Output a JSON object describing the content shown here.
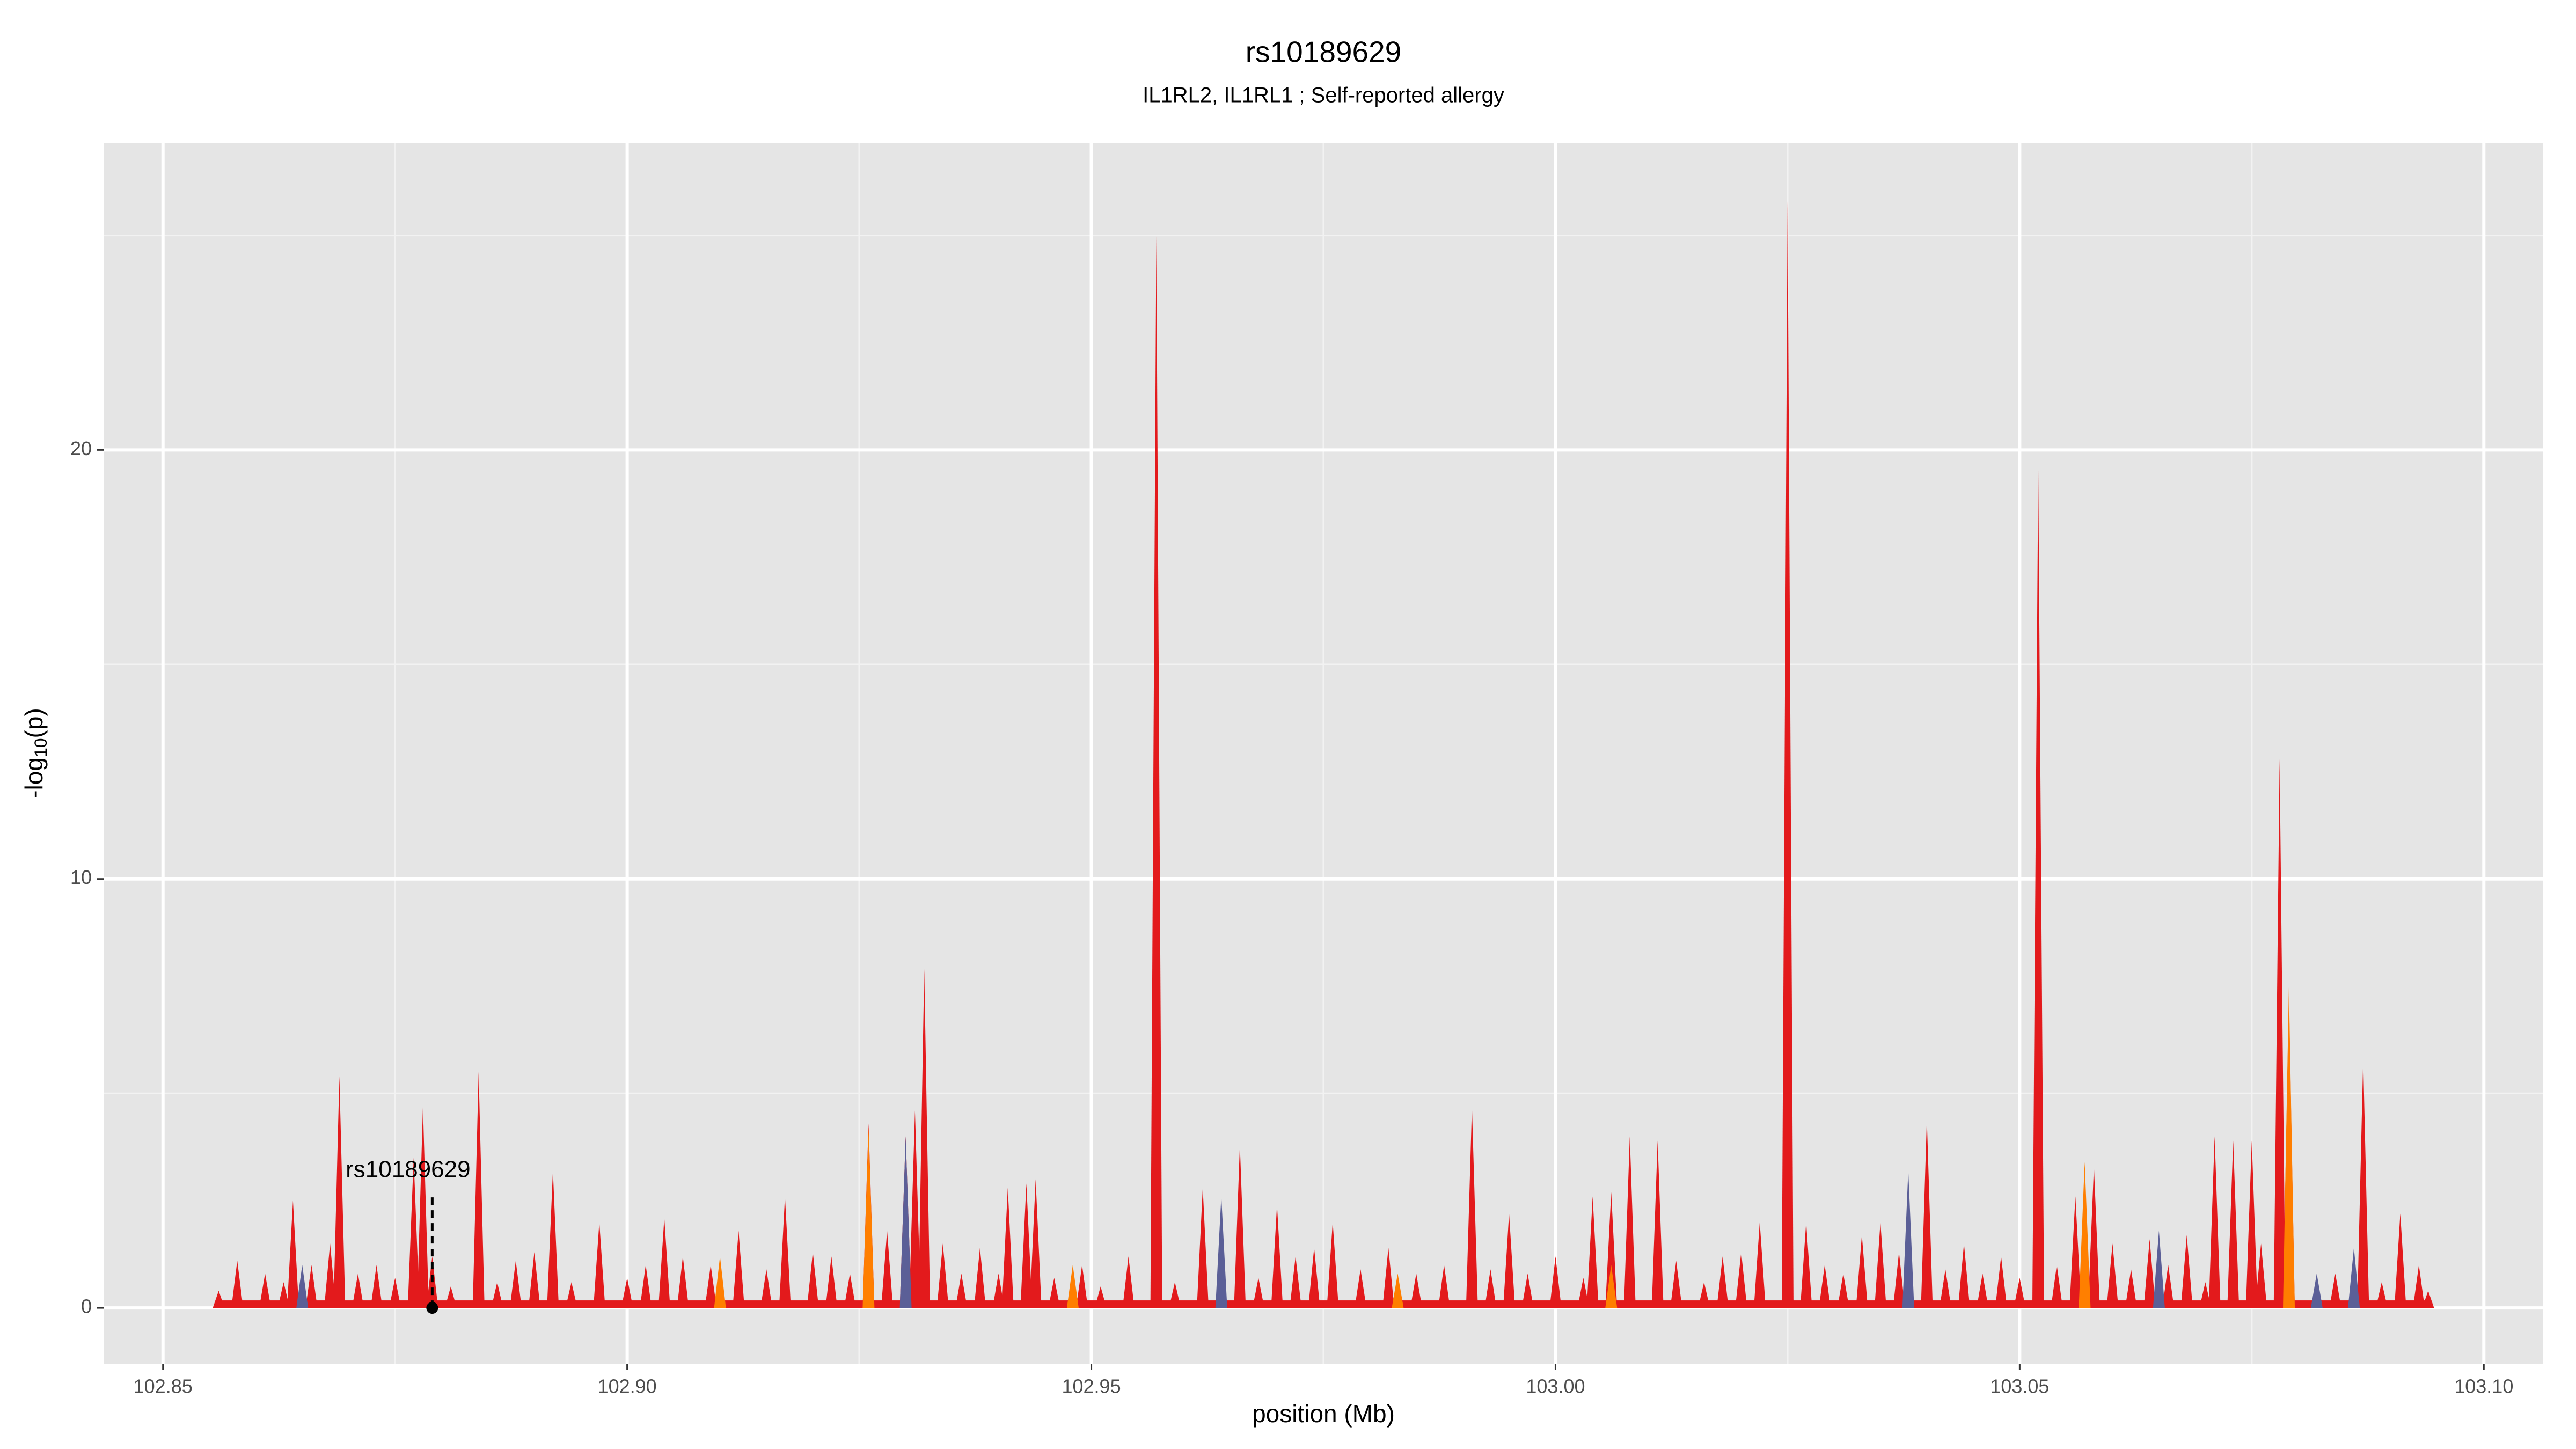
{
  "chart_data": {
    "type": "area",
    "title": "rs10189629",
    "subtitle": "IL1RL2, IL1RL1 ; Self-reported allergy",
    "xlabel": "position (Mb)",
    "ylabel_parts": [
      "-log",
      "10",
      "(p)"
    ],
    "xlim": [
      102.8436,
      103.1064
    ],
    "ylim": [
      -1.3,
      27.16
    ],
    "xticks": [
      102.85,
      {
        "value": 102.9,
        "label": "102.90"
      },
      102.95,
      {
        "value": 103.0,
        "label": "103.00"
      },
      103.05,
      {
        "value": 103.1,
        "label": "103.10"
      }
    ],
    "yticks": [
      0,
      10,
      20
    ],
    "grid": true,
    "annotation": {
      "text": "rs10189629",
      "x": 102.879,
      "y": 0
    },
    "series": [
      {
        "color": "#e31a1c",
        "x": [
          102.856,
          102.858,
          102.861,
          102.863,
          102.864,
          102.866,
          102.868,
          102.869,
          102.871,
          102.873,
          102.875,
          102.877,
          102.878,
          102.879,
          102.881,
          102.884,
          102.886,
          102.888,
          102.89,
          102.892,
          102.894,
          102.897,
          102.9,
          102.902,
          102.904,
          102.906,
          102.909,
          102.912,
          102.915,
          102.917,
          102.92,
          102.922,
          102.924,
          102.926,
          102.928,
          102.93,
          102.931,
          102.932,
          102.934,
          102.936,
          102.938,
          102.94,
          102.941,
          102.943,
          102.944,
          102.946,
          102.949,
          102.951,
          102.954,
          102.957,
          102.959,
          102.962,
          102.964,
          102.966,
          102.968,
          102.97,
          102.972,
          102.974,
          102.976,
          102.979,
          102.982,
          102.985,
          102.988,
          102.991,
          102.993,
          102.995,
          102.997,
          103.0,
          103.003,
          103.004,
          103.006,
          103.008,
          103.011,
          103.013,
          103.016,
          103.018,
          103.02,
          103.022,
          103.025,
          103.027,
          103.029,
          103.031,
          103.033,
          103.035,
          103.037,
          103.04,
          103.042,
          103.044,
          103.046,
          103.048,
          103.05,
          103.052,
          103.054,
          103.056,
          103.058,
          103.06,
          103.062,
          103.064,
          103.066,
          103.068,
          103.07,
          103.071,
          103.073,
          103.075,
          103.076,
          103.078,
          103.079,
          103.082,
          103.084,
          103.086,
          103.087,
          103.089,
          103.091,
          103.093,
          103.094
        ],
        "values": [
          0.4,
          1.1,
          0.8,
          0.6,
          2.5,
          1.0,
          1.5,
          5.4,
          0.8,
          1.0,
          0.7,
          3.5,
          4.7,
          1.2,
          0.5,
          5.5,
          0.6,
          1.1,
          1.3,
          3.2,
          0.6,
          2.0,
          0.7,
          1.0,
          2.1,
          1.2,
          1.0,
          1.8,
          0.9,
          2.6,
          1.3,
          1.2,
          0.8,
          4.3,
          1.8,
          4.0,
          4.6,
          7.9,
          1.5,
          0.8,
          1.4,
          0.8,
          2.8,
          2.9,
          3.0,
          0.7,
          1.0,
          0.5,
          1.2,
          25.0,
          0.6,
          2.8,
          1.5,
          3.8,
          0.7,
          2.4,
          1.2,
          1.4,
          2.0,
          0.9,
          1.4,
          0.8,
          1.0,
          4.7,
          0.9,
          2.2,
          0.8,
          1.2,
          0.7,
          2.6,
          2.7,
          4.0,
          3.9,
          1.1,
          0.6,
          1.2,
          1.3,
          2.0,
          25.8,
          2.0,
          1.0,
          0.8,
          1.7,
          2.0,
          1.3,
          4.4,
          0.9,
          1.5,
          0.8,
          1.2,
          0.7,
          19.6,
          1.0,
          2.6,
          3.3,
          1.5,
          0.9,
          1.6,
          1.0,
          1.7,
          0.6,
          4.0,
          3.9,
          3.9,
          1.5,
          12.8,
          7.3,
          0.5,
          0.8,
          1.0,
          5.8,
          0.6,
          2.2,
          1.0,
          0.4
        ]
      },
      {
        "color": "#ff7f00",
        "x": [
          102.91,
          102.926,
          102.948,
          102.983,
          103.006,
          103.057,
          103.079
        ],
        "values": [
          1.2,
          4.2,
          1.0,
          0.8,
          1.0,
          3.4,
          7.5
        ]
      },
      {
        "color": "#5b5f97",
        "x": [
          102.865,
          102.93,
          102.964,
          103.038,
          103.065,
          103.082,
          103.086
        ],
        "values": [
          1.0,
          4.0,
          2.6,
          3.2,
          1.8,
          0.8,
          1.4
        ]
      }
    ]
  }
}
